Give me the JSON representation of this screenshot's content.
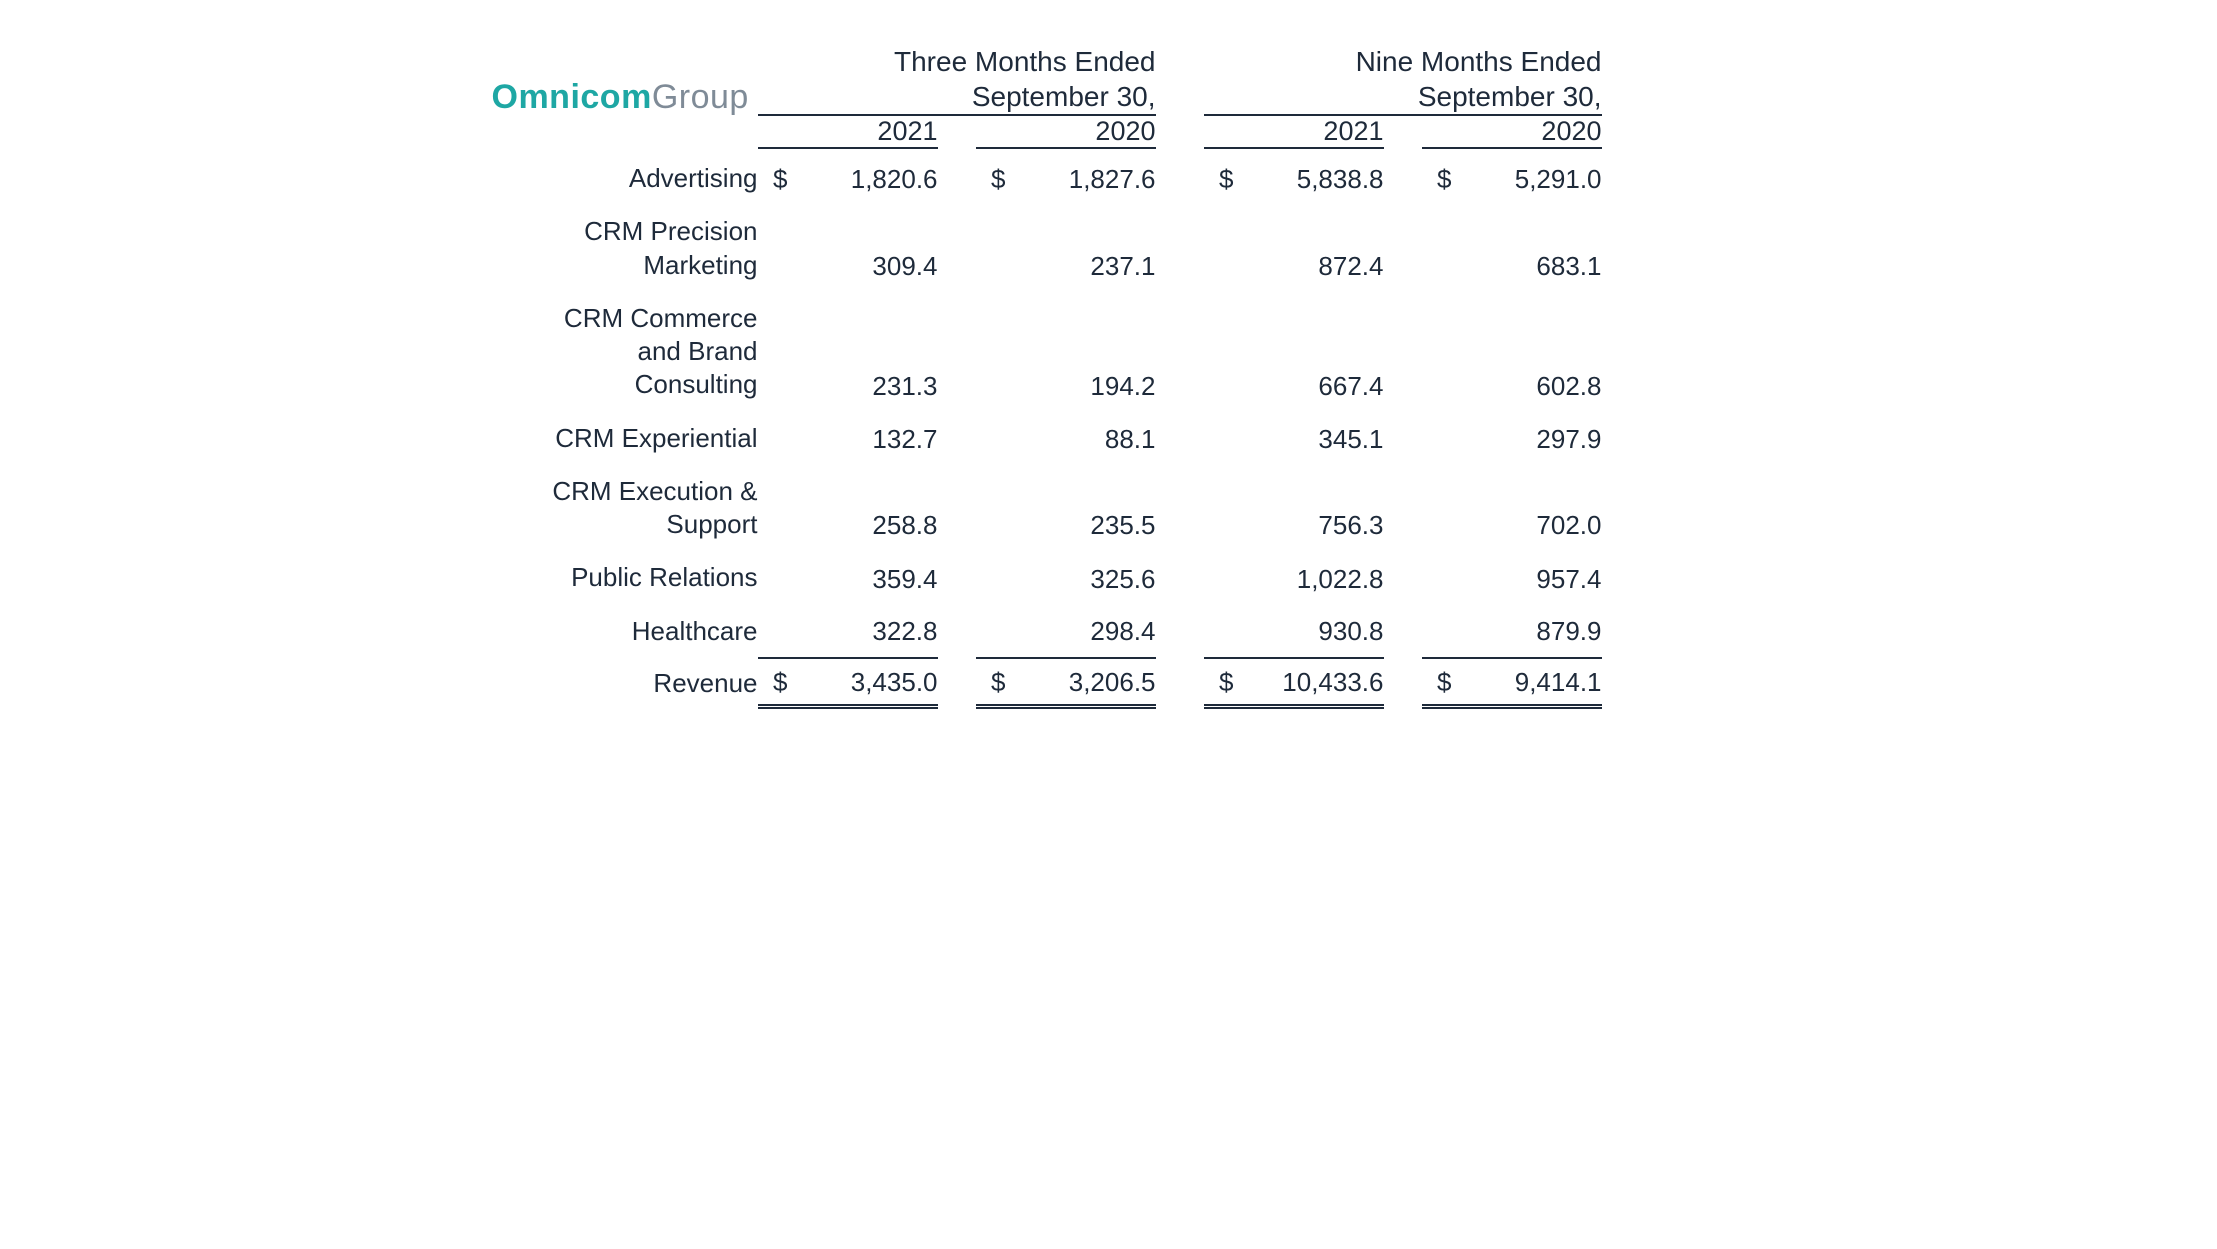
{
  "brand": {
    "part1": "Omnicom",
    "part2": "Group",
    "color1": "#1ea7a4",
    "color2": "#7f8b97"
  },
  "table": {
    "text_color": "#1e2a3a",
    "rule_color": "#1e2a3a",
    "currency_symbol": "$",
    "periods": [
      {
        "title_line1": "Three Months Ended",
        "title_line2": "September 30,",
        "years": [
          "2021",
          "2020"
        ]
      },
      {
        "title_line1": "Nine Months Ended",
        "title_line2": "September 30,",
        "years": [
          "2021",
          "2020"
        ]
      }
    ],
    "rows": [
      {
        "label": "Advertising",
        "values": [
          "1,820.6",
          "1,827.6",
          "5,838.8",
          "5,291.0"
        ],
        "show_symbol": true
      },
      {
        "label": "CRM Precision Marketing",
        "values": [
          "309.4",
          "237.1",
          "872.4",
          "683.1"
        ]
      },
      {
        "label": "CRM Commerce and Brand Consulting",
        "values": [
          "231.3",
          "194.2",
          "667.4",
          "602.8"
        ]
      },
      {
        "label": "CRM Experiential",
        "values": [
          "132.7",
          "88.1",
          "345.1",
          "297.9"
        ]
      },
      {
        "label": "CRM Execution & Support",
        "values": [
          "258.8",
          "235.5",
          "756.3",
          "702.0"
        ]
      },
      {
        "label": "Public Relations",
        "values": [
          "359.4",
          "325.6",
          "1,022.8",
          "957.4"
        ]
      },
      {
        "label": "Healthcare",
        "values": [
          "322.8",
          "298.4",
          "930.8",
          "879.9"
        ]
      }
    ],
    "total": {
      "label": "Revenue",
      "values": [
        "3,435.0",
        "3,206.5",
        "10,433.6",
        "9,414.1"
      ],
      "show_symbol": true
    }
  }
}
